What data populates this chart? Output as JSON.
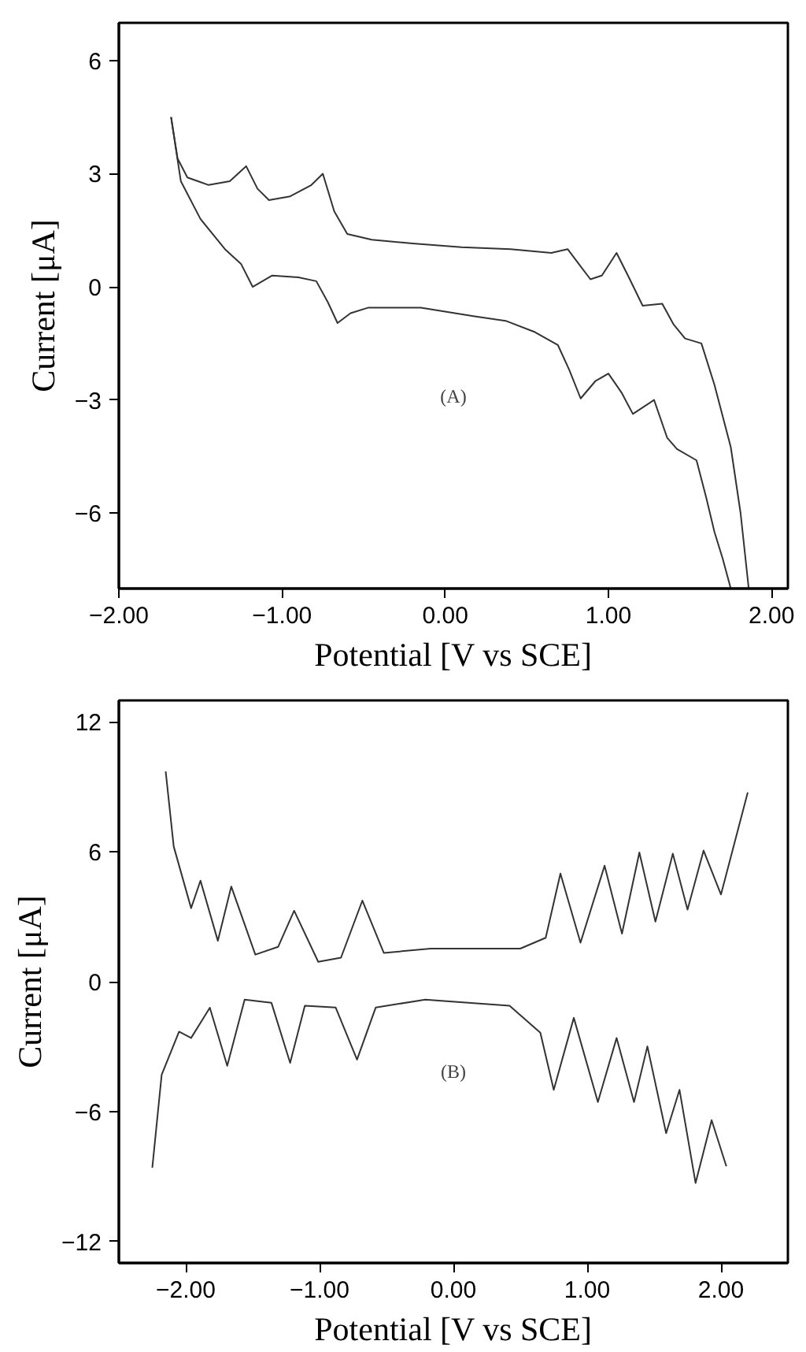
{
  "chart_data": [
    {
      "type": "line",
      "xlabel": "Potential [V vs SCE]",
      "ylabel": "Current [μA]",
      "annotations": [
        "(A)"
      ],
      "xlim": [
        -2,
        2.1
      ],
      "ylim": [
        -8,
        7
      ],
      "xticks": [
        {
          "value": -2,
          "label": "−2.00"
        },
        {
          "value": -1,
          "label": "−1.00"
        },
        {
          "value": 0,
          "label": "0.00"
        },
        {
          "value": 1,
          "label": "1.00"
        },
        {
          "value": 2,
          "label": "2.00"
        }
      ],
      "yticks": [
        6,
        3,
        0,
        {
          "value": -3,
          "label": "−3"
        },
        {
          "value": -6,
          "label": "−6"
        }
      ],
      "grid": false,
      "marker": "none",
      "line_style": "solid",
      "series": [
        {
          "color": "#333333",
          "x": [
            -1.68,
            -1.64,
            -1.58,
            -1.45,
            -1.32,
            -1.22,
            -1.15,
            -1.08,
            -0.95,
            -0.82,
            -0.75,
            -0.68,
            -0.6,
            -0.45,
            -0.2,
            0.1,
            0.4,
            0.65,
            0.75,
            0.82,
            0.89,
            0.96,
            1.05,
            1.12,
            1.21,
            1.33,
            1.4,
            1.47,
            1.57,
            1.65,
            1.75,
            1.81,
            1.86
          ],
          "values": [
            4.5,
            3.4,
            2.9,
            2.7,
            2.8,
            3.2,
            2.6,
            2.3,
            2.4,
            2.7,
            3.0,
            2.0,
            1.4,
            1.25,
            1.15,
            1.05,
            1.0,
            0.9,
            1.0,
            0.6,
            0.2,
            0.3,
            0.9,
            0.3,
            -0.5,
            -0.45,
            -1.0,
            -1.37,
            -1.5,
            -2.6,
            -4.25,
            -6.0,
            -8.0
          ]
        },
        {
          "color": "#333333",
          "x": [
            -1.68,
            -1.62,
            -1.5,
            -1.35,
            -1.25,
            -1.18,
            -1.06,
            -0.9,
            -0.79,
            -0.72,
            -0.66,
            -0.58,
            -0.47,
            -0.15,
            0.18,
            0.37,
            0.55,
            0.69,
            0.76,
            0.83,
            0.92,
            1.0,
            1.08,
            1.15,
            1.28,
            1.36,
            1.42,
            1.54,
            1.6,
            1.65,
            1.7,
            1.75
          ],
          "values": [
            4.5,
            2.8,
            1.8,
            1.0,
            0.6,
            0.0,
            0.3,
            0.25,
            0.15,
            -0.4,
            -0.96,
            -0.7,
            -0.55,
            -0.55,
            -0.78,
            -0.9,
            -1.2,
            -1.54,
            -2.2,
            -2.96,
            -2.5,
            -2.3,
            -2.8,
            -3.37,
            -3.0,
            -4.0,
            -4.3,
            -4.6,
            -5.6,
            -6.5,
            -7.2,
            -8.0
          ]
        }
      ]
    },
    {
      "type": "line",
      "xlabel": "Potential [V vs SCE]",
      "ylabel": "Current [μA]",
      "annotations": [
        "(B)"
      ],
      "xlim": [
        -2.5,
        2.5
      ],
      "ylim": [
        -13,
        13
      ],
      "xticks": [
        {
          "value": -2,
          "label": "−2.00"
        },
        {
          "value": -1,
          "label": "−1.00"
        },
        {
          "value": 0,
          "label": "0.00"
        },
        {
          "value": 1,
          "label": "1.00"
        },
        {
          "value": 2,
          "label": "2.00"
        }
      ],
      "yticks": [
        12,
        6,
        0,
        {
          "value": -6,
          "label": "−6"
        },
        {
          "value": -12,
          "label": "−12"
        }
      ],
      "grid": false,
      "marker": "none",
      "line_style": "solid",
      "series": [
        {
          "color": "#333333",
          "x": [
            -2.15,
            -2.09,
            -1.96,
            -1.89,
            -1.76,
            -1.66,
            -1.48,
            -1.31,
            -1.19,
            -1.01,
            -0.84,
            -0.68,
            -0.52,
            -0.17,
            0.5,
            0.69,
            0.8,
            0.95,
            1.13,
            1.26,
            1.39,
            1.51,
            1.64,
            1.75,
            1.87,
            2.0,
            2.2
          ],
          "values": [
            9.72,
            6.25,
            3.4,
            4.67,
            1.89,
            4.4,
            1.25,
            1.61,
            3.28,
            0.92,
            1.11,
            3.75,
            1.33,
            1.53,
            1.53,
            2.03,
            5.0,
            1.8,
            5.36,
            2.22,
            5.97,
            2.78,
            5.92,
            3.33,
            6.06,
            4.03,
            8.75
          ]
        },
        {
          "color": "#333333",
          "x": [
            -2.25,
            -2.18,
            -2.05,
            -1.96,
            -1.82,
            -1.69,
            -1.56,
            -1.36,
            -1.22,
            -1.11,
            -0.88,
            -0.72,
            -0.58,
            -0.21,
            0.42,
            0.65,
            0.75,
            0.9,
            1.08,
            1.22,
            1.35,
            1.45,
            1.59,
            1.69,
            1.81,
            1.93,
            2.04
          ],
          "values": [
            -8.6,
            -4.3,
            -2.31,
            -2.6,
            -1.2,
            -3.89,
            -0.83,
            -0.97,
            -3.75,
            -1.11,
            -1.19,
            -3.6,
            -1.19,
            -0.83,
            -1.11,
            -2.36,
            -5.0,
            -1.67,
            -5.56,
            -2.6,
            -5.56,
            -2.99,
            -7.0,
            -5.0,
            -9.3,
            -6.4,
            -8.53
          ]
        }
      ]
    }
  ]
}
